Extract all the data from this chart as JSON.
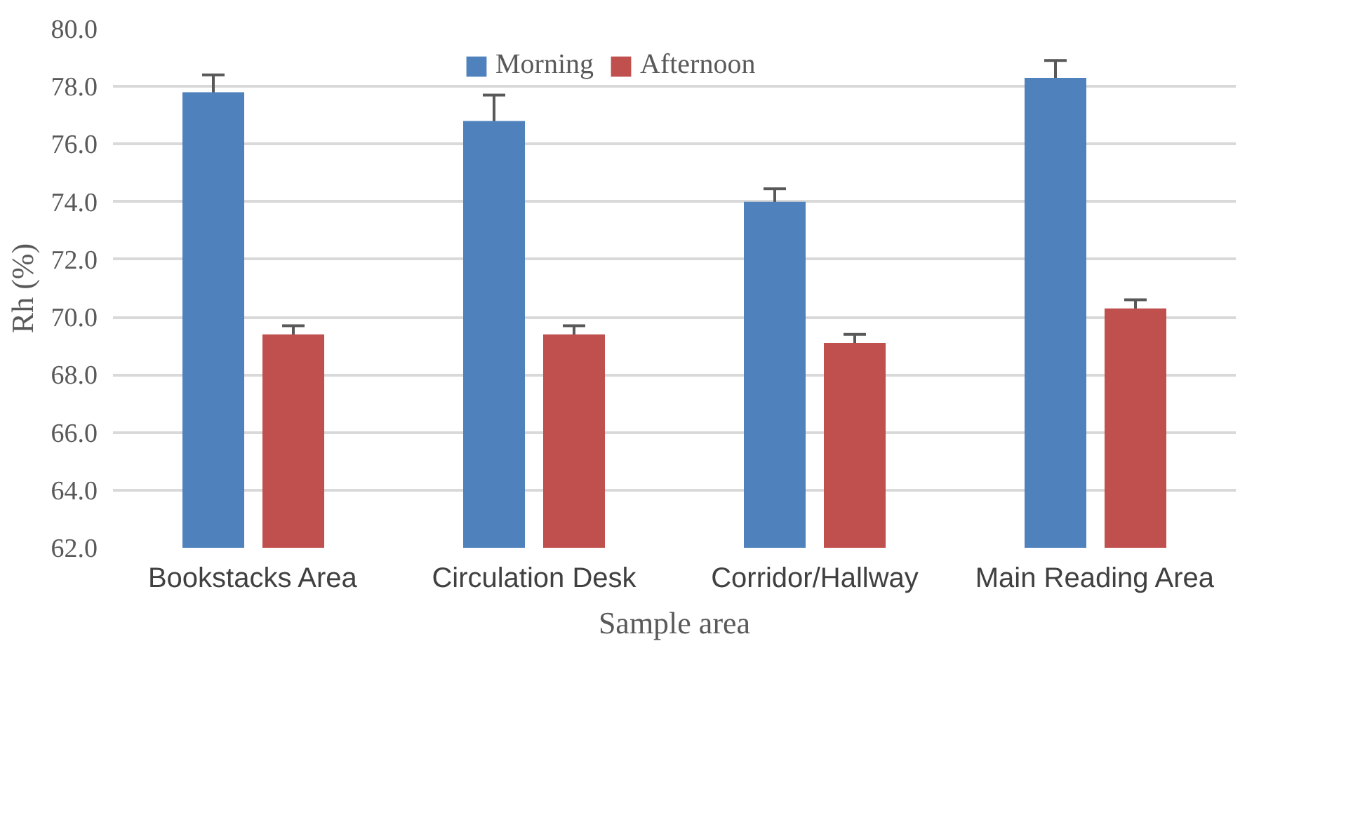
{
  "chart_data": {
    "type": "bar",
    "xlabel": "Sample area",
    "ylabel": "Rh (%)",
    "categories": [
      "Bookstacks Area",
      "Circulation Desk",
      "Corridor/Hallway",
      "Main Reading Area"
    ],
    "series": [
      {
        "name": "Morning",
        "color": "#4f81bd",
        "values": [
          77.8,
          76.8,
          74.0,
          78.3
        ],
        "errors": [
          0.6,
          0.9,
          0.45,
          0.6
        ]
      },
      {
        "name": "Afternoon",
        "color": "#c0504d",
        "values": [
          69.4,
          69.4,
          69.1,
          70.3
        ],
        "errors": [
          0.3,
          0.3,
          0.3,
          0.3
        ]
      }
    ],
    "ylim": [
      62,
      80
    ],
    "yticks": [
      {
        "value": 62,
        "label": "62.0"
      },
      {
        "value": 64,
        "label": "64.0"
      },
      {
        "value": 66,
        "label": "66.0"
      },
      {
        "value": 68,
        "label": "68.0"
      },
      {
        "value": 70,
        "label": "70.0"
      },
      {
        "value": 72,
        "label": "72.0"
      },
      {
        "value": 74,
        "label": "74.0"
      },
      {
        "value": 76,
        "label": "76.0"
      },
      {
        "value": 78,
        "label": "78.0"
      },
      {
        "value": 80,
        "label": "80.0"
      }
    ],
    "grid": "y",
    "legend": "top"
  }
}
